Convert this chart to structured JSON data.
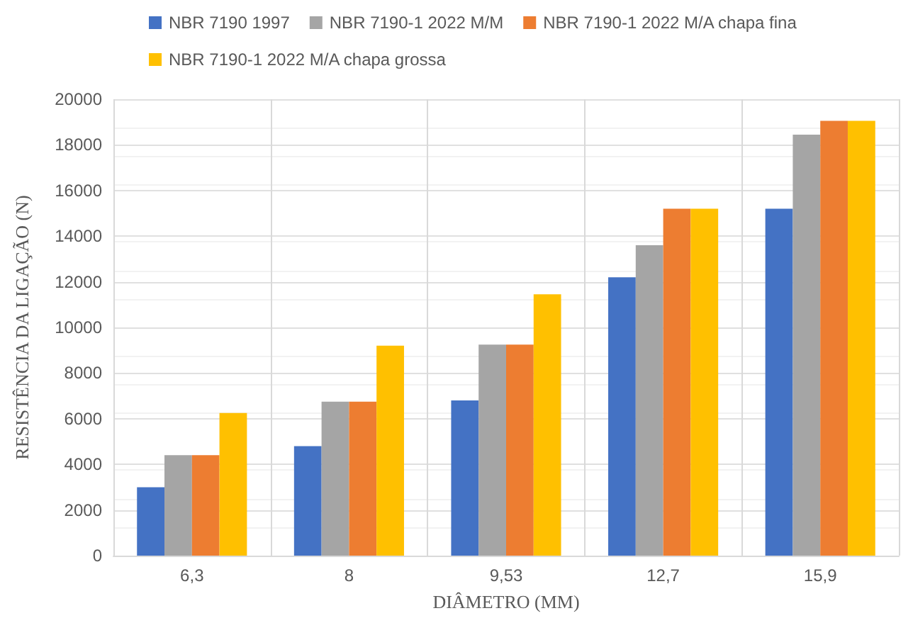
{
  "chart_data": {
    "type": "bar",
    "xlabel": "DIÂMETRO (MM)",
    "ylabel": "RESISTÊNCIA DA LIGAÇÃO (N)",
    "categories": [
      "6,3",
      "8",
      "9,53",
      "12,7",
      "15,9"
    ],
    "series": [
      {
        "name": "NBR 7190 1997",
        "color": "#4472c4",
        "values": [
          3000,
          4800,
          6800,
          12200,
          15200
        ]
      },
      {
        "name": "NBR 7190-1 2022 M/M",
        "color": "#a5a5a5",
        "values": [
          4400,
          6750,
          9250,
          13600,
          18450
        ]
      },
      {
        "name": "NBR 7190-1 2022 M/A chapa fina",
        "color": "#ed7d31",
        "values": [
          4400,
          6750,
          9250,
          15200,
          19050
        ]
      },
      {
        "name": "NBR 7190-1 2022 M/A chapa grossa",
        "color": "#ffc000",
        "values": [
          6250,
          9200,
          11450,
          15200,
          19050
        ]
      }
    ],
    "ylim": [
      0,
      20000
    ],
    "yticks": [
      0,
      2000,
      4000,
      6000,
      8000,
      10000,
      12000,
      14000,
      16000,
      18000,
      20000
    ],
    "grid": true,
    "legend": "top"
  }
}
